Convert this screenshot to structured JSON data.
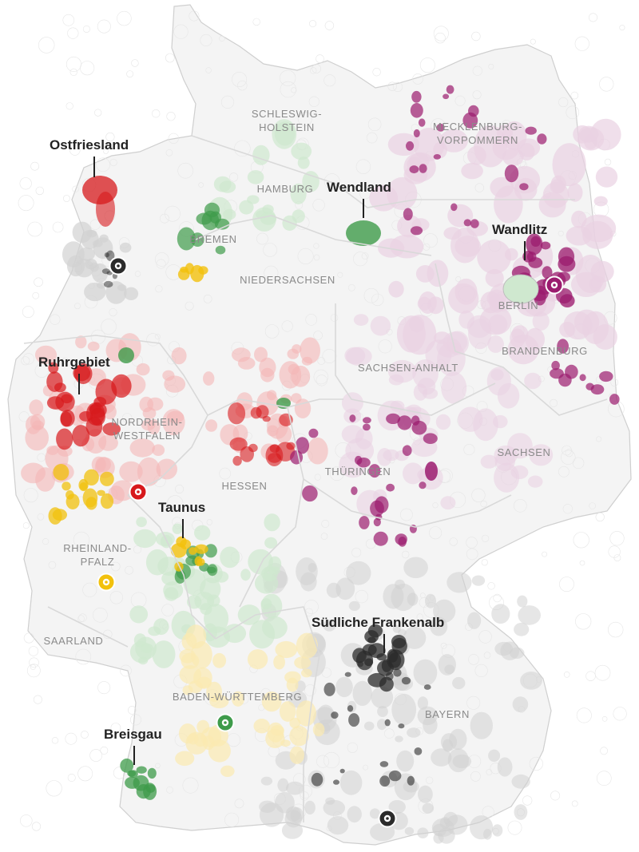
{
  "colors": {
    "red": "#d7191c",
    "red_light": "#f4b6b6",
    "purple": "#9b1b6e",
    "purple_light": "#ead2e2",
    "green": "#3e9b4a",
    "green_light": "#cfe8cf",
    "yellow": "#f2c10d",
    "yellow_light": "#fbe9b0",
    "black": "#2b2b2b",
    "grey": "#d2d2d2",
    "border": "#d9d9d9",
    "land": "#f4f4f4"
  },
  "states": [
    {
      "id": "sh",
      "label": "SCHLESWIG-\nHOLSTEIN"
    },
    {
      "id": "mv",
      "label": "MECKLENBURG-\nVORPOMMERN"
    },
    {
      "id": "hh",
      "label": "HAMBURG"
    },
    {
      "id": "hb",
      "label": "BREMEN"
    },
    {
      "id": "ni",
      "label": "NIEDERSACHSEN"
    },
    {
      "id": "be",
      "label": "BERLIN"
    },
    {
      "id": "bb",
      "label": "BRANDENBURG"
    },
    {
      "id": "st",
      "label": "SACHSEN-ANHALT"
    },
    {
      "id": "nw",
      "label": "NORDRHEIN-\nWESTFALEN"
    },
    {
      "id": "sn",
      "label": "SACHSEN"
    },
    {
      "id": "th",
      "label": "THÜRINGEN"
    },
    {
      "id": "he",
      "label": "HESSEN"
    },
    {
      "id": "rp",
      "label": "RHEINLAND-\nPFALZ"
    },
    {
      "id": "sl",
      "label": "SAARLAND"
    },
    {
      "id": "bw",
      "label": "BADEN-WÜRTTEMBERG"
    },
    {
      "id": "by",
      "label": "BAYERN"
    }
  ],
  "regions": [
    {
      "id": "ostfriesland",
      "label": "Ostfriesland",
      "color": "red"
    },
    {
      "id": "wendland",
      "label": "Wendland",
      "color": "green"
    },
    {
      "id": "wandlitz",
      "label": "Wandlitz",
      "color": "purple"
    },
    {
      "id": "ruhrgebiet",
      "label": "Ruhrgebiet",
      "color": "red"
    },
    {
      "id": "taunus",
      "label": "Taunus",
      "color": "yellow"
    },
    {
      "id": "frankenalb",
      "label": "Südliche Frankenalb",
      "color": "black"
    },
    {
      "id": "breisgau",
      "label": "Breisgau",
      "color": "green"
    }
  ],
  "markers": [
    {
      "id": "marker-black-nw",
      "color": "black"
    },
    {
      "id": "marker-purple-berlin",
      "color": "purple"
    },
    {
      "id": "marker-red-rp",
      "color": "red"
    },
    {
      "id": "marker-yellow-rp",
      "color": "yellow"
    },
    {
      "id": "marker-green-bw",
      "color": "green"
    },
    {
      "id": "marker-black-by",
      "color": "black"
    }
  ]
}
